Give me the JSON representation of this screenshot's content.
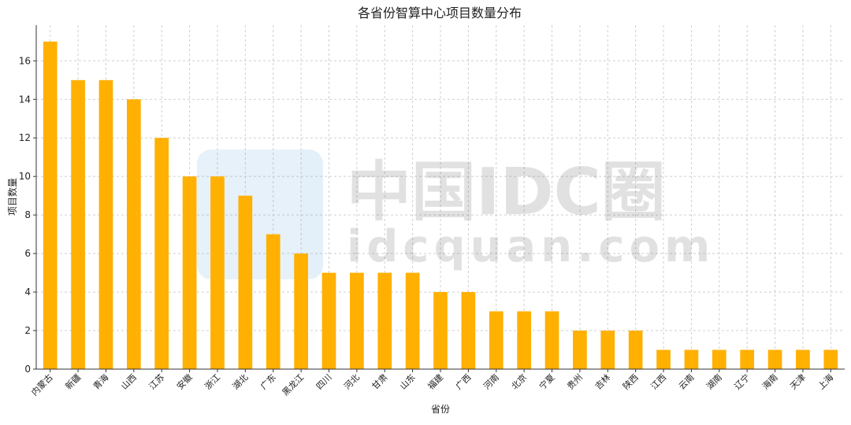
{
  "chart_data": {
    "type": "bar",
    "title": "各省份智算中心项目数量分布",
    "xlabel": "省份",
    "ylabel": "项目数量",
    "categories": [
      "内蒙古",
      "新疆",
      "青海",
      "山西",
      "江苏",
      "安徽",
      "浙江",
      "湖北",
      "广东",
      "黑龙江",
      "四川",
      "河北",
      "甘肃",
      "山东",
      "福建",
      "广西",
      "河南",
      "北京",
      "宁夏",
      "贵州",
      "吉林",
      "陕西",
      "江西",
      "云南",
      "湖南",
      "辽宁",
      "海南",
      "天津",
      "上海"
    ],
    "values": [
      17,
      15,
      15,
      14,
      12,
      10,
      10,
      9,
      7,
      6,
      5,
      5,
      5,
      5,
      4,
      4,
      3,
      3,
      3,
      2,
      2,
      2,
      1,
      1,
      1,
      1,
      1,
      1,
      1
    ],
    "ylim": [
      0,
      17.85
    ],
    "yticks": [
      0,
      2,
      4,
      6,
      8,
      10,
      12,
      14,
      16
    ],
    "grid": true,
    "bar_color": "#ffb000"
  },
  "watermark": {
    "title": "中国IDC圈",
    "url": "idcquan.com"
  }
}
